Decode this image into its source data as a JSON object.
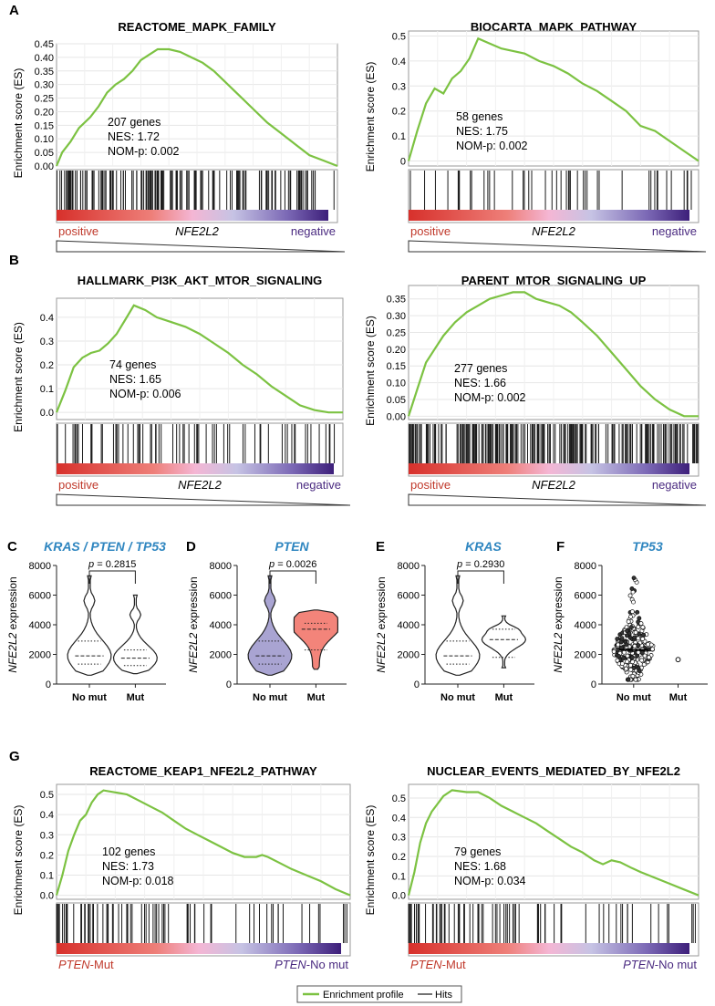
{
  "colors": {
    "profile": "#7cc242",
    "hits": "#1a1a1a",
    "positive": "#c0392b",
    "negative": "#4a2a80",
    "title_blue": "#2f86c0",
    "violin_purple": "#a9a4d2",
    "violin_red": "#f3847a",
    "grid": "#e6e6e6"
  },
  "panel_letters": [
    "A",
    "B",
    "C",
    "D",
    "E",
    "F",
    "G"
  ],
  "legend": {
    "profile": "Enrichment profile",
    "hits": "Hits"
  },
  "chart_data": [
    {
      "type": "line",
      "letter": "A",
      "title": "REACTOME_MAPK_FAMILY",
      "ylabel": "Enrichment score (ES)",
      "yticks": [
        "0.00",
        "0.05",
        "0.10",
        "0.15",
        "0.20",
        "0.25",
        "0.30",
        "0.35",
        "0.40",
        "0.45"
      ],
      "ylim": [
        0,
        0.45
      ],
      "stats": [
        "207 genes",
        "NES: 1.72",
        "NOM-p: 0.002"
      ],
      "left_label": "positive",
      "center_label": "NFE2L2",
      "right_label": "negative",
      "curve": [
        [
          0,
          0
        ],
        [
          2,
          0.05
        ],
        [
          5,
          0.09
        ],
        [
          8,
          0.14
        ],
        [
          12,
          0.18
        ],
        [
          15,
          0.22
        ],
        [
          18,
          0.27
        ],
        [
          21,
          0.3
        ],
        [
          24,
          0.32
        ],
        [
          27,
          0.35
        ],
        [
          30,
          0.39
        ],
        [
          33,
          0.41
        ],
        [
          36,
          0.43
        ],
        [
          40,
          0.43
        ],
        [
          44,
          0.42
        ],
        [
          48,
          0.4
        ],
        [
          52,
          0.38
        ],
        [
          56,
          0.35
        ],
        [
          60,
          0.31
        ],
        [
          65,
          0.26
        ],
        [
          70,
          0.21
        ],
        [
          75,
          0.16
        ],
        [
          80,
          0.12
        ],
        [
          85,
          0.08
        ],
        [
          90,
          0.04
        ],
        [
          95,
          0.02
        ],
        [
          100,
          0
        ]
      ],
      "hits_density": "mapk"
    },
    {
      "type": "line",
      "letter": "",
      "title": "BIOCARTA_MAPK_PATHWAY",
      "ylabel": "Enrichment score (ES)",
      "yticks": [
        "0",
        "0.1",
        "0.2",
        "0.3",
        "0.4",
        "0.5"
      ],
      "ylim": [
        -0.02,
        0.52
      ],
      "stats": [
        "58 genes",
        "NES: 1.75",
        "NOM-p: 0.002"
      ],
      "left_label": "positive",
      "center_label": "NFE2L2",
      "right_label": "negative",
      "curve": [
        [
          0,
          0
        ],
        [
          3,
          0.12
        ],
        [
          6,
          0.23
        ],
        [
          9,
          0.29
        ],
        [
          12,
          0.27
        ],
        [
          15,
          0.33
        ],
        [
          18,
          0.36
        ],
        [
          21,
          0.41
        ],
        [
          24,
          0.49
        ],
        [
          28,
          0.47
        ],
        [
          32,
          0.45
        ],
        [
          36,
          0.44
        ],
        [
          40,
          0.43
        ],
        [
          45,
          0.4
        ],
        [
          50,
          0.38
        ],
        [
          55,
          0.35
        ],
        [
          60,
          0.31
        ],
        [
          65,
          0.28
        ],
        [
          70,
          0.24
        ],
        [
          75,
          0.2
        ],
        [
          80,
          0.14
        ],
        [
          85,
          0.12
        ],
        [
          90,
          0.08
        ],
        [
          95,
          0.04
        ],
        [
          100,
          0
        ]
      ],
      "hits_density": "sparse"
    },
    {
      "type": "line",
      "letter": "B",
      "title": "HALLMARK_PI3K_AKT_MTOR_SIGNALING",
      "ylabel": "Enrichment score (ES)",
      "yticks": [
        "0.0",
        "0.1",
        "0.2",
        "0.3",
        "0.4"
      ],
      "ylim": [
        -0.03,
        0.48
      ],
      "stats": [
        "74 genes",
        "NES: 1.65",
        "NOM-p: 0.006"
      ],
      "left_label": "positive",
      "center_label": "NFE2L2",
      "right_label": "negative",
      "curve": [
        [
          0,
          0
        ],
        [
          3,
          0.09
        ],
        [
          6,
          0.19
        ],
        [
          9,
          0.23
        ],
        [
          12,
          0.25
        ],
        [
          15,
          0.26
        ],
        [
          18,
          0.29
        ],
        [
          21,
          0.33
        ],
        [
          24,
          0.39
        ],
        [
          27,
          0.45
        ],
        [
          31,
          0.43
        ],
        [
          35,
          0.4
        ],
        [
          40,
          0.38
        ],
        [
          45,
          0.36
        ],
        [
          50,
          0.33
        ],
        [
          55,
          0.29
        ],
        [
          60,
          0.25
        ],
        [
          65,
          0.2
        ],
        [
          70,
          0.16
        ],
        [
          75,
          0.11
        ],
        [
          80,
          0.07
        ],
        [
          85,
          0.03
        ],
        [
          90,
          0.01
        ],
        [
          95,
          0.0
        ],
        [
          100,
          0
        ]
      ],
      "hits_density": "medium"
    },
    {
      "type": "line",
      "letter": "",
      "title": "PARENT_MTOR_SIGNALING_UP",
      "ylabel": "Enrichment score (ES)",
      "yticks": [
        "0.00",
        "0.05",
        "0.10",
        "0.15",
        "0.20",
        "0.25",
        "0.30",
        "0.35"
      ],
      "ylim": [
        -0.01,
        0.39
      ],
      "stats": [
        "277 genes",
        "NES: 1.66",
        "NOM-p: 0.002"
      ],
      "left_label": "positive",
      "center_label": "NFE2L2",
      "right_label": "negative",
      "curve": [
        [
          0,
          0
        ],
        [
          3,
          0.08
        ],
        [
          6,
          0.16
        ],
        [
          9,
          0.2
        ],
        [
          12,
          0.24
        ],
        [
          16,
          0.28
        ],
        [
          20,
          0.31
        ],
        [
          24,
          0.33
        ],
        [
          28,
          0.35
        ],
        [
          32,
          0.36
        ],
        [
          36,
          0.37
        ],
        [
          40,
          0.37
        ],
        [
          44,
          0.35
        ],
        [
          48,
          0.34
        ],
        [
          52,
          0.33
        ],
        [
          56,
          0.31
        ],
        [
          60,
          0.28
        ],
        [
          65,
          0.24
        ],
        [
          70,
          0.19
        ],
        [
          75,
          0.14
        ],
        [
          80,
          0.09
        ],
        [
          85,
          0.05
        ],
        [
          90,
          0.02
        ],
        [
          95,
          0.0
        ],
        [
          100,
          0
        ]
      ],
      "hits_density": "dense"
    },
    {
      "type": "violin",
      "letter": "C",
      "title": "KRAS / PTEN / TP53",
      "ylabel": "NFE2L2 expression",
      "yticks": [
        "0",
        "2000",
        "4000",
        "6000",
        "8000"
      ],
      "ylim": [
        0,
        8000
      ],
      "categories": [
        "No mut",
        "Mut"
      ],
      "pvalue": "p = 0.2815",
      "fills": [
        "#ffffff",
        "#ffffff"
      ],
      "groups": [
        {
          "min": 600,
          "max": 7300,
          "median": 1900,
          "q1": 1350,
          "q3": 2900
        },
        {
          "min": 700,
          "max": 6000,
          "median": 1750,
          "q1": 1250,
          "q3": 2300
        }
      ]
    },
    {
      "type": "violin",
      "letter": "D",
      "title": "PTEN",
      "ylabel": "NFE2L2 expression",
      "yticks": [
        "0",
        "2000",
        "4000",
        "6000",
        "8000"
      ],
      "ylim": [
        0,
        8000
      ],
      "categories": [
        "No mut",
        "Mut"
      ],
      "pvalue": "p = 0.0026",
      "fills": [
        "#a9a4d2",
        "#f3847a"
      ],
      "groups": [
        {
          "min": 600,
          "max": 7300,
          "median": 1900,
          "q1": 1350,
          "q3": 2900
        },
        {
          "min": 1000,
          "max": 5000,
          "median": 3700,
          "q1": 2300,
          "q3": 4100
        }
      ]
    },
    {
      "type": "violin",
      "letter": "E",
      "title": "KRAS",
      "ylabel": "NFE2L2 expression",
      "yticks": [
        "0",
        "2000",
        "4000",
        "6000",
        "8000"
      ],
      "ylim": [
        0,
        8000
      ],
      "categories": [
        "No mut",
        "Mut"
      ],
      "pvalue": "p = 0.2930",
      "fills": [
        "#ffffff",
        "#ffffff"
      ],
      "groups": [
        {
          "min": 600,
          "max": 7300,
          "median": 1900,
          "q1": 1350,
          "q3": 2900
        },
        {
          "min": 1100,
          "max": 4600,
          "median": 3000,
          "q1": 1800,
          "q3": 3700
        }
      ]
    },
    {
      "type": "scatter",
      "letter": "F",
      "title": "TP53",
      "ylabel": "NFE2L2 expression",
      "yticks": [
        "0",
        "2000",
        "4000",
        "6000",
        "8000"
      ],
      "ylim": [
        0,
        8000
      ],
      "categories": [
        "No mut",
        "Mut"
      ],
      "mean": 2300,
      "mut_point": 1650
    },
    {
      "type": "line",
      "letter": "G",
      "title": "REACTOME_KEAP1_NFE2L2_PATHWAY",
      "ylabel": "Enrichment score (ES)",
      "yticks": [
        "0.0",
        "0.1",
        "0.2",
        "0.3",
        "0.4",
        "0.5"
      ],
      "ylim": [
        -0.02,
        0.55
      ],
      "stats": [
        "102 genes",
        "NES: 1.73",
        "NOM-p: 0.018"
      ],
      "left_label": "PTEN-Mut",
      "center_label": "",
      "right_label": "PTEN-No mut",
      "curve": [
        [
          0,
          0
        ],
        [
          2,
          0.1
        ],
        [
          4,
          0.22
        ],
        [
          6,
          0.3
        ],
        [
          8,
          0.37
        ],
        [
          10,
          0.4
        ],
        [
          12,
          0.46
        ],
        [
          14,
          0.5
        ],
        [
          16,
          0.52
        ],
        [
          20,
          0.51
        ],
        [
          24,
          0.5
        ],
        [
          28,
          0.47
        ],
        [
          32,
          0.44
        ],
        [
          36,
          0.41
        ],
        [
          40,
          0.37
        ],
        [
          44,
          0.33
        ],
        [
          48,
          0.3
        ],
        [
          52,
          0.27
        ],
        [
          56,
          0.24
        ],
        [
          60,
          0.21
        ],
        [
          64,
          0.19
        ],
        [
          68,
          0.19
        ],
        [
          70,
          0.2
        ],
        [
          72,
          0.19
        ],
        [
          76,
          0.16
        ],
        [
          80,
          0.13
        ],
        [
          85,
          0.1
        ],
        [
          90,
          0.07
        ],
        [
          95,
          0.03
        ],
        [
          100,
          0
        ]
      ],
      "hits_density": "early"
    },
    {
      "type": "line",
      "letter": "",
      "title": "NUCLEAR_EVENTS_MEDIATED_BY_NFE2L2",
      "ylabel": "Enrichment score (ES)",
      "yticks": [
        "0.0",
        "0.1",
        "0.2",
        "0.3",
        "0.4",
        "0.5"
      ],
      "ylim": [
        -0.02,
        0.57
      ],
      "stats": [
        "79 genes",
        "NES: 1.68",
        "NOM-p: 0.034"
      ],
      "left_label": "PTEN-Mut",
      "center_label": "",
      "right_label": "PTEN-No mut",
      "curve": [
        [
          0,
          0
        ],
        [
          2,
          0.12
        ],
        [
          4,
          0.27
        ],
        [
          6,
          0.37
        ],
        [
          8,
          0.43
        ],
        [
          10,
          0.47
        ],
        [
          12,
          0.51
        ],
        [
          15,
          0.54
        ],
        [
          20,
          0.53
        ],
        [
          24,
          0.53
        ],
        [
          28,
          0.5
        ],
        [
          32,
          0.46
        ],
        [
          36,
          0.43
        ],
        [
          40,
          0.4
        ],
        [
          44,
          0.37
        ],
        [
          48,
          0.33
        ],
        [
          52,
          0.29
        ],
        [
          56,
          0.25
        ],
        [
          60,
          0.22
        ],
        [
          64,
          0.18
        ],
        [
          67,
          0.16
        ],
        [
          70,
          0.18
        ],
        [
          73,
          0.17
        ],
        [
          77,
          0.14
        ],
        [
          80,
          0.12
        ],
        [
          85,
          0.09
        ],
        [
          90,
          0.06
        ],
        [
          95,
          0.03
        ],
        [
          100,
          0
        ]
      ],
      "hits_density": "early"
    }
  ]
}
